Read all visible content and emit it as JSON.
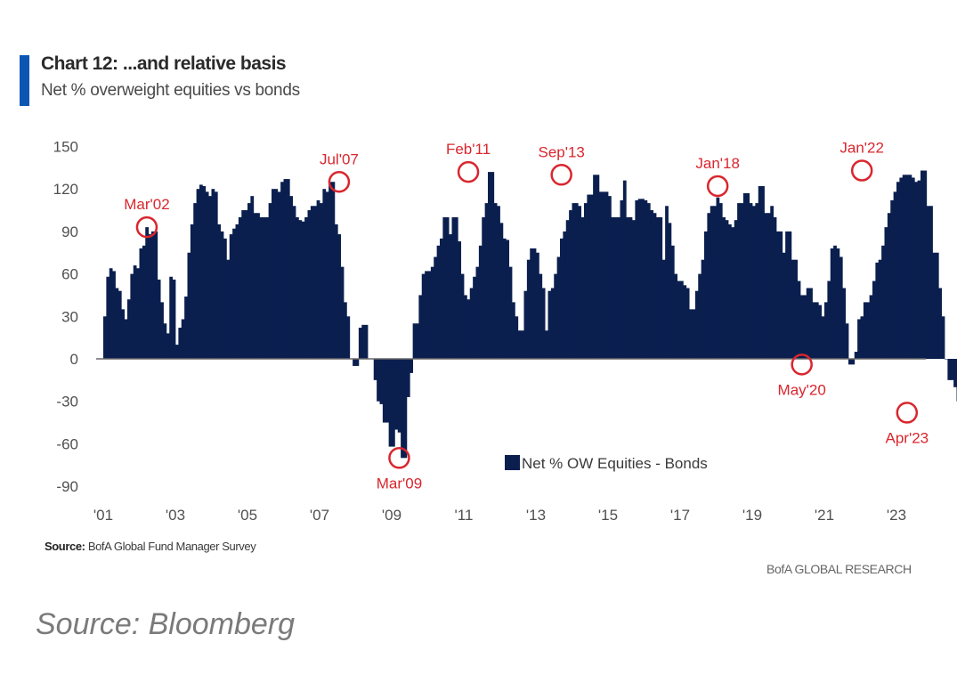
{
  "header": {
    "title": "Chart 12: ...and relative basis",
    "subtitle": "Net % overweight equities vs bonds"
  },
  "colors": {
    "accent": "#0a56b2",
    "bars": "#0b1f4f",
    "annotation": "#d9262e",
    "axis": "#505050"
  },
  "footer": {
    "source_label": "Source:",
    "source_text": "BofA Global Fund Manager Survey",
    "publisher": "BofA GLOBAL RESEARCH",
    "outer_source": "Source: Bloomberg"
  },
  "chart_data": {
    "type": "bar",
    "title": "Chart 12: ...and relative basis",
    "subtitle": "Net % overweight equities vs bonds",
    "xlabel": "",
    "ylabel": "",
    "ylim": [
      -90,
      150
    ],
    "yticks": [
      "150",
      "120",
      "90",
      "60",
      "30",
      "0",
      "-30",
      "-60",
      "-90"
    ],
    "ytick_values": [
      150,
      120,
      90,
      60,
      30,
      0,
      -30,
      -60,
      -90
    ],
    "xticks": [
      "'01",
      "'03",
      "'05",
      "'07",
      "'09",
      "'11",
      "'13",
      "'15",
      "'17",
      "'19",
      "'21",
      "'23"
    ],
    "xtick_years": [
      2001,
      2003,
      2005,
      2007,
      2009,
      2011,
      2013,
      2015,
      2017,
      2019,
      2021,
      2023
    ],
    "grid": false,
    "legend": {
      "position": "bottom-center",
      "entries": [
        "Net % OW Equities - Bonds"
      ]
    },
    "start": "2001-01",
    "frequency": "monthly",
    "series": [
      {
        "name": "Net % OW Equities - Bonds",
        "values": [
          30,
          58,
          64,
          62,
          50,
          48,
          35,
          28,
          42,
          60,
          66,
          64,
          78,
          80,
          93,
          88,
          90,
          90,
          56,
          40,
          25,
          18,
          58,
          56,
          10,
          22,
          28,
          44,
          75,
          95,
          110,
          120,
          123,
          122,
          118,
          115,
          120,
          118,
          95,
          90,
          85,
          70,
          88,
          92,
          95,
          100,
          105,
          105,
          110,
          115,
          103,
          103,
          100,
          100,
          100,
          110,
          120,
          120,
          118,
          125,
          127,
          127,
          115,
          108,
          100,
          98,
          97,
          100,
          105,
          108,
          108,
          112,
          110,
          120,
          118,
          125,
          125,
          95,
          88,
          65,
          40,
          30,
          0,
          -5,
          -5,
          22,
          24,
          24,
          0,
          0,
          -15,
          -30,
          -32,
          -45,
          -45,
          -62,
          -62,
          -50,
          -52,
          -70,
          -70,
          -27,
          -10,
          25,
          25,
          45,
          60,
          62,
          62,
          65,
          72,
          80,
          85,
          100,
          100,
          88,
          100,
          100,
          83,
          60,
          45,
          42,
          50,
          58,
          65,
          80,
          100,
          110,
          132,
          132,
          110,
          108,
          96,
          85,
          84,
          65,
          40,
          30,
          20,
          20,
          48,
          70,
          78,
          78,
          75,
          60,
          50,
          20,
          48,
          50,
          60,
          72,
          85,
          90,
          98,
          105,
          110,
          110,
          108,
          100,
          110,
          116,
          116,
          130,
          130,
          118,
          118,
          118,
          115,
          100,
          100,
          100,
          112,
          126,
          100,
          100,
          98,
          112,
          113,
          113,
          112,
          110,
          105,
          103,
          100,
          100,
          70,
          108,
          96,
          80,
          60,
          55,
          55,
          52,
          50,
          35,
          35,
          48,
          60,
          70,
          90,
          103,
          108,
          108,
          114,
          110,
          100,
          98,
          95,
          93,
          98,
          110,
          110,
          117,
          117,
          110,
          108,
          110,
          122,
          122,
          103,
          103,
          108,
          100,
          90,
          90,
          75,
          90,
          90,
          70,
          70,
          55,
          45,
          45,
          50,
          50,
          40,
          40,
          38,
          30,
          40,
          55,
          78,
          80,
          78,
          72,
          50,
          25,
          -4,
          -4,
          5,
          28,
          30,
          40,
          40,
          45,
          55,
          68,
          70,
          80,
          93,
          103,
          112,
          118,
          125,
          128,
          130,
          130,
          130,
          128,
          125,
          126,
          133,
          133,
          108,
          108,
          75,
          75,
          50,
          30,
          0,
          -15,
          -15,
          -20,
          -30,
          -30,
          -36,
          -38,
          -38,
          -36,
          -38,
          -38
        ]
      }
    ],
    "annotations": [
      {
        "label": "Mar'02",
        "date": "2002-03",
        "value": 93
      },
      {
        "label": "Jul'07",
        "date": "2007-07",
        "value": 125
      },
      {
        "label": "Mar'09",
        "date": "2009-03",
        "value": -70
      },
      {
        "label": "Feb'11",
        "date": "2011-02",
        "value": 132
      },
      {
        "label": "Sep'13",
        "date": "2013-09",
        "value": 130
      },
      {
        "label": "Jan'18",
        "date": "2018-01",
        "value": 122
      },
      {
        "label": "May'20",
        "date": "2020-05",
        "value": -4
      },
      {
        "label": "Jan'22",
        "date": "2022-01",
        "value": 133
      },
      {
        "label": "Apr'23",
        "date": "2023-04",
        "value": -38
      }
    ]
  }
}
